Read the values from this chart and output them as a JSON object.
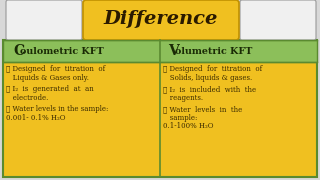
{
  "title": "Difference",
  "title_bg": "#F0C020",
  "header_bg": "#8CBF5A",
  "content_bg": "#F0C020",
  "border_color": "#5A8A30",
  "bg_color": "#D8D8D8",
  "text_color": "#3A2A00",
  "header_text_color": "#1A2A05",
  "title_text_color": "#2A1A00",
  "left_header_big": "C",
  "left_header_rest": "oulometric KFT",
  "right_header_big": "V",
  "right_header_rest": "olumetric KFT",
  "left_bullets": [
    [
      "➤ Designed  for  titration  of",
      "   Liquids & Gases only."
    ],
    [
      "➤ I₂  is  generated  at  an",
      "   electrode."
    ],
    [
      "➤ Water levels in the sample:",
      "0.001- 0.1% H₂O"
    ]
  ],
  "right_bullets": [
    [
      "➤ Designed  for  titration  of",
      "   Solids, liquids & gases."
    ],
    [
      "➤ I₂  is  included  with  the",
      "   reagents."
    ],
    [
      "➤ Water  levels  in  the",
      "   sample:",
      "0.1-100% H₂O"
    ]
  ]
}
